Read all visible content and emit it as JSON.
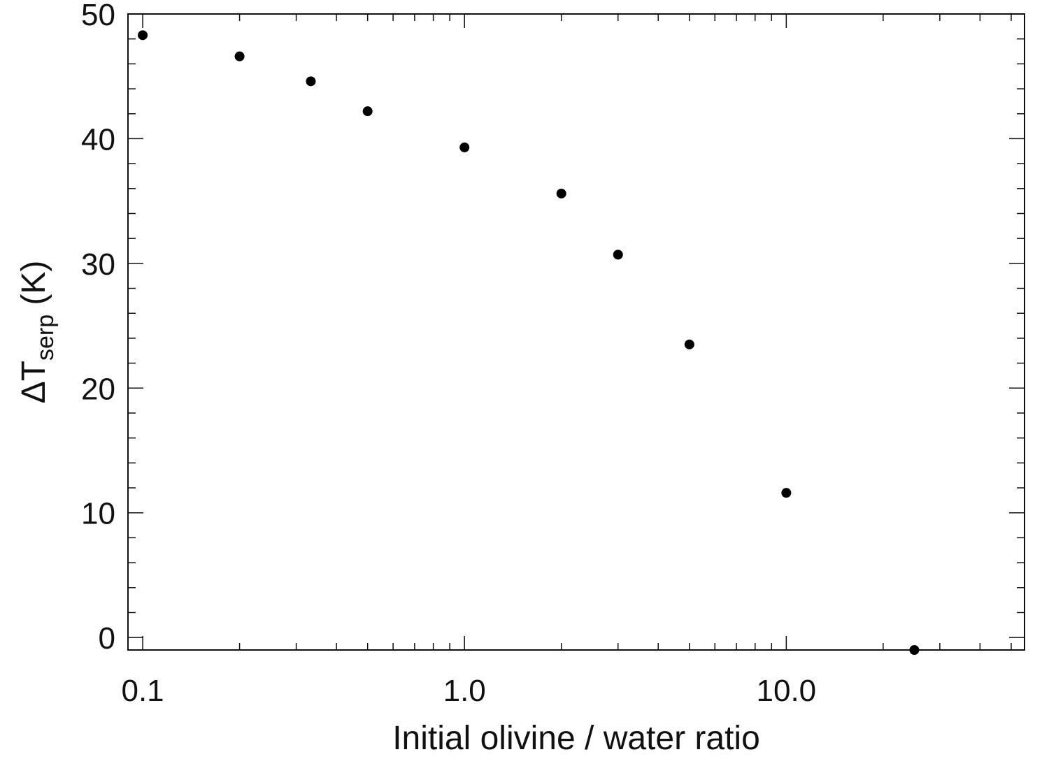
{
  "chart_data": {
    "type": "scatter",
    "title": "",
    "xlabel": "Initial olivine / water ratio",
    "ylabel": {
      "prefix": "ΔT",
      "subscript": "serp",
      "suffix": " (K)"
    },
    "x_scale": "log",
    "xlim": [
      0.09,
      55
    ],
    "ylim": [
      -1,
      50
    ],
    "x_ticks": [
      {
        "value": 0.1,
        "label": "0.1"
      },
      {
        "value": 1,
        "label": "1.0"
      },
      {
        "value": 10,
        "label": "10.0"
      }
    ],
    "y_ticks": [
      {
        "value": 0,
        "label": "0"
      },
      {
        "value": 10,
        "label": "10"
      },
      {
        "value": 20,
        "label": "20"
      },
      {
        "value": 30,
        "label": "30"
      },
      {
        "value": 40,
        "label": "40"
      },
      {
        "value": 50,
        "label": "50"
      }
    ],
    "grid": false,
    "legend": "none",
    "marker_color": "#000000",
    "points": [
      {
        "x": 0.1,
        "y": 48.3
      },
      {
        "x": 0.2,
        "y": 46.6
      },
      {
        "x": 0.333,
        "y": 44.6
      },
      {
        "x": 0.5,
        "y": 42.2
      },
      {
        "x": 1.0,
        "y": 39.3
      },
      {
        "x": 2.0,
        "y": 35.6
      },
      {
        "x": 3.0,
        "y": 30.7
      },
      {
        "x": 5.0,
        "y": 23.5
      },
      {
        "x": 10.0,
        "y": 11.6
      },
      {
        "x": 25.0,
        "y": -1.0
      }
    ]
  }
}
